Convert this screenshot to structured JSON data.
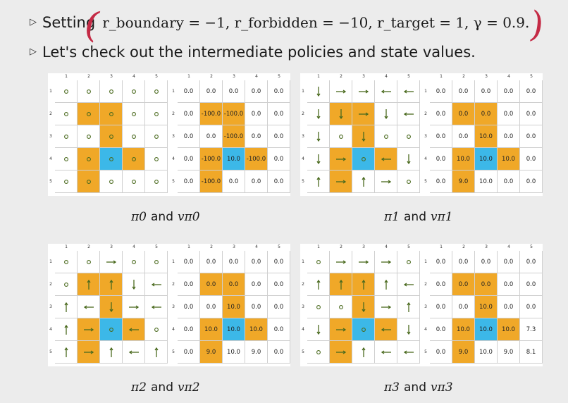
{
  "bullets": {
    "setting_label": "Setting",
    "setting_math": "r_boundary = −1, r_forbidden = −10, r_target = 1, γ = 0.9.",
    "check_text": "Let's check out the intermediate policies and state values."
  },
  "colors": {
    "forbidden": "#f0a828",
    "target": "#3cb8e8",
    "annotation": "#c42a45",
    "arrow": "#4a6a1e"
  },
  "grid_labels": [
    "1",
    "2",
    "3",
    "4",
    "5"
  ],
  "panels": [
    {
      "caption_policy": "π0",
      "caption_value": "vπ0",
      "policy": [
        [
          "o",
          "o",
          "o",
          "o",
          "o"
        ],
        [
          "o",
          "o",
          "o",
          "o",
          "o"
        ],
        [
          "o",
          "o",
          "o",
          "o",
          "o"
        ],
        [
          "o",
          "o",
          "o",
          "o",
          "o"
        ],
        [
          "o",
          "o",
          "o",
          "o",
          "o"
        ]
      ],
      "values": [
        [
          "0.0",
          "0.0",
          "0.0",
          "0.0",
          "0.0"
        ],
        [
          "0.0",
          "-100.0",
          "-100.0",
          "0.0",
          "0.0"
        ],
        [
          "0.0",
          "0.0",
          "-100.0",
          "0.0",
          "0.0"
        ],
        [
          "0.0",
          "-100.0",
          "10.0",
          "-100.0",
          "0.0"
        ],
        [
          "0.0",
          "-100.0",
          "0.0",
          "0.0",
          "0.0"
        ]
      ]
    },
    {
      "caption_policy": "π1",
      "caption_value": "vπ1",
      "policy": [
        [
          "down",
          "right",
          "right",
          "left",
          "left"
        ],
        [
          "down",
          "down",
          "right",
          "down",
          "left"
        ],
        [
          "down",
          "o",
          "down",
          "o",
          "o"
        ],
        [
          "down",
          "right",
          "o",
          "left",
          "down"
        ],
        [
          "up",
          "right",
          "up",
          "right",
          "o"
        ]
      ],
      "values": [
        [
          "0.0",
          "0.0",
          "0.0",
          "0.0",
          "0.0"
        ],
        [
          "0.0",
          "0.0",
          "0.0",
          "0.0",
          "0.0"
        ],
        [
          "0.0",
          "0.0",
          "10.0",
          "0.0",
          "0.0"
        ],
        [
          "0.0",
          "10.0",
          "10.0",
          "10.0",
          "0.0"
        ],
        [
          "0.0",
          "9.0",
          "10.0",
          "0.0",
          "0.0"
        ]
      ]
    },
    {
      "caption_policy": "π2",
      "caption_value": "vπ2",
      "policy": [
        [
          "o",
          "o",
          "right",
          "o",
          "o"
        ],
        [
          "o",
          "up",
          "up",
          "down",
          "left"
        ],
        [
          "up",
          "left",
          "down",
          "right",
          "left"
        ],
        [
          "up",
          "right",
          "o",
          "left",
          "o"
        ],
        [
          "up",
          "right",
          "up",
          "left",
          "up"
        ]
      ],
      "values": [
        [
          "0.0",
          "0.0",
          "0.0",
          "0.0",
          "0.0"
        ],
        [
          "0.0",
          "0.0",
          "0.0",
          "0.0",
          "0.0"
        ],
        [
          "0.0",
          "0.0",
          "10.0",
          "0.0",
          "0.0"
        ],
        [
          "0.0",
          "10.0",
          "10.0",
          "10.0",
          "0.0"
        ],
        [
          "0.0",
          "9.0",
          "10.0",
          "9.0",
          "0.0"
        ]
      ]
    },
    {
      "caption_policy": "π3",
      "caption_value": "vπ3",
      "policy": [
        [
          "o",
          "right",
          "right",
          "right",
          "o"
        ],
        [
          "up",
          "up",
          "up",
          "up",
          "left"
        ],
        [
          "o",
          "o",
          "down",
          "right",
          "up"
        ],
        [
          "down",
          "right",
          "o",
          "left",
          "down"
        ],
        [
          "o",
          "right",
          "up",
          "left",
          "left"
        ]
      ],
      "values": [
        [
          "0.0",
          "0.0",
          "0.0",
          "0.0",
          "0.0"
        ],
        [
          "0.0",
          "0.0",
          "0.0",
          "0.0",
          "0.0"
        ],
        [
          "0.0",
          "0.0",
          "10.0",
          "0.0",
          "0.0"
        ],
        [
          "0.0",
          "10.0",
          "10.0",
          "10.0",
          "7.3"
        ],
        [
          "0.0",
          "9.0",
          "10.0",
          "9.0",
          "8.1"
        ]
      ]
    }
  ],
  "forbidden_cells": [
    [
      1,
      1
    ],
    [
      1,
      2
    ],
    [
      2,
      2
    ],
    [
      3,
      1
    ],
    [
      3,
      3
    ],
    [
      4,
      1
    ]
  ],
  "target_cell": [
    3,
    2
  ]
}
